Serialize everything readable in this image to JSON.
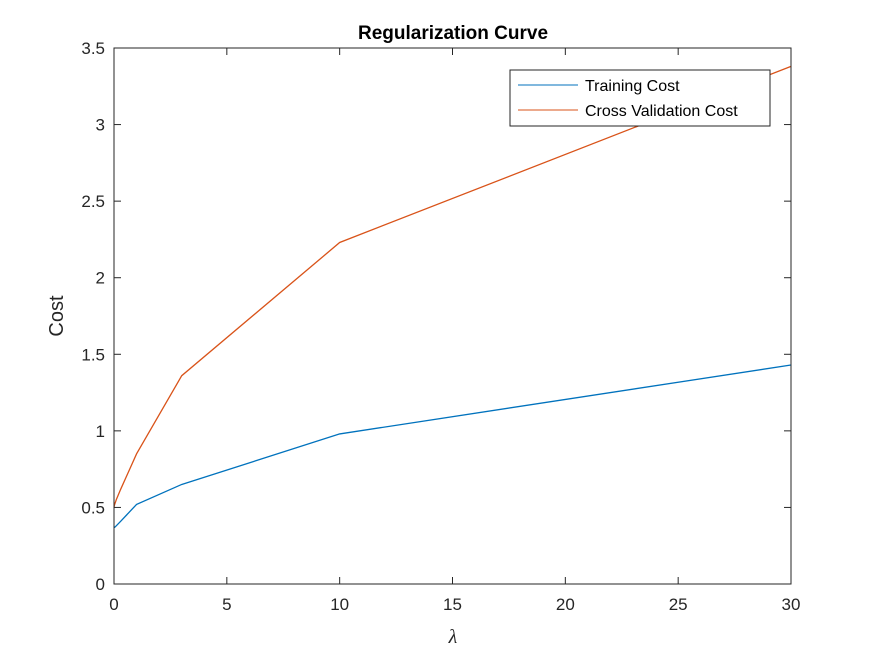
{
  "chart_data": {
    "type": "line",
    "title": "Regularization Curve",
    "xlabel": "λ",
    "ylabel": "Cost",
    "xlim": [
      0,
      30
    ],
    "ylim": [
      0,
      3.5
    ],
    "xticks": [
      0,
      5,
      10,
      15,
      20,
      25,
      30
    ],
    "xtick_labels": [
      "0",
      "5",
      "10",
      "15",
      "20",
      "25",
      "30"
    ],
    "yticks": [
      0,
      0.5,
      1,
      1.5,
      2,
      2.5,
      3,
      3.5
    ],
    "ytick_labels": [
      "0",
      "0.5",
      "1",
      "1.5",
      "2",
      "2.5",
      "3",
      "3.5"
    ],
    "grid": false,
    "legend_position": "top-right",
    "x": [
      0,
      0.001,
      0.003,
      0.01,
      0.03,
      0.1,
      0.3,
      1,
      3,
      10,
      30
    ],
    "series": [
      {
        "name": "Training Cost",
        "color": "#0072BD",
        "values": [
          0.37,
          0.37,
          0.37,
          0.37,
          0.37,
          0.38,
          0.41,
          0.52,
          0.65,
          0.98,
          1.43
        ]
      },
      {
        "name": "Cross Validation Cost",
        "color": "#D95319",
        "values": [
          0.5,
          0.5,
          0.5,
          0.51,
          0.52,
          0.55,
          0.62,
          0.85,
          1.36,
          2.23,
          3.38
        ]
      }
    ]
  }
}
